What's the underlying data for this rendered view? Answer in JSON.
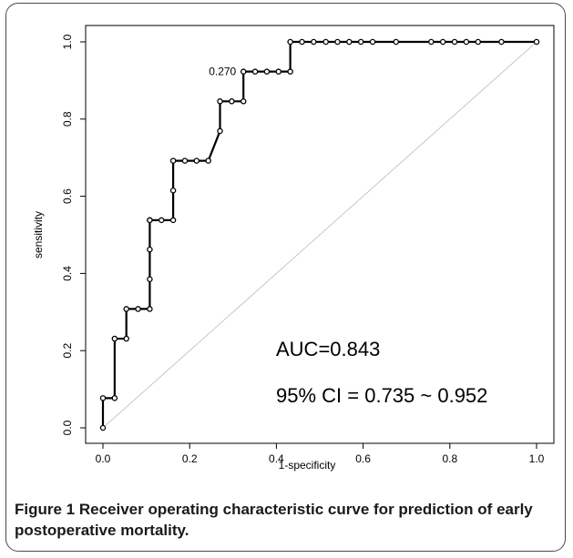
{
  "chart_data": {
    "type": "line",
    "xlabel": "1-specificity",
    "ylabel": "sensitivity",
    "xlim": [
      0.0,
      1.0
    ],
    "ylim": [
      0.0,
      1.0
    ],
    "x_ticks": [
      "0.0",
      "0.2",
      "0.4",
      "0.6",
      "0.8",
      "1.0"
    ],
    "y_ticks": [
      "0.0",
      "0.2",
      "0.4",
      "0.6",
      "0.8",
      "1.0"
    ],
    "grid": false,
    "reference_line": [
      [
        0,
        0
      ],
      [
        1,
        1
      ]
    ],
    "series": [
      {
        "x": [
          0.0,
          0.0,
          0.027,
          0.027,
          0.054,
          0.054,
          0.081,
          0.108,
          0.108,
          0.108,
          0.108,
          0.108,
          0.135,
          0.162,
          0.162,
          0.162,
          0.189,
          0.216,
          0.243,
          0.27,
          0.27,
          0.297,
          0.324,
          0.324,
          0.351,
          0.378,
          0.405,
          0.432,
          0.432,
          0.459,
          0.486,
          0.514,
          0.541,
          0.568,
          0.595,
          0.622,
          0.676,
          0.757,
          0.784,
          0.811,
          0.838,
          0.865,
          0.919,
          1.0
        ],
        "y": [
          0.0,
          0.077,
          0.077,
          0.231,
          0.231,
          0.308,
          0.308,
          0.308,
          0.385,
          0.462,
          0.538,
          0.538,
          0.538,
          0.538,
          0.615,
          0.692,
          0.692,
          0.692,
          0.692,
          0.769,
          0.846,
          0.846,
          0.846,
          0.923,
          0.923,
          0.923,
          0.923,
          0.923,
          1.0,
          1.0,
          1.0,
          1.0,
          1.0,
          1.0,
          1.0,
          1.0,
          1.0,
          1.0,
          1.0,
          1.0,
          1.0,
          1.0,
          1.0,
          1.0
        ]
      }
    ],
    "annotations": {
      "point_label": "0.270",
      "point_label_at": [
        0.324,
        0.923
      ],
      "auc": "AUC=0.843",
      "ci": "95% CI = 0.735 ~ 0.952"
    }
  },
  "caption": {
    "label": "Figure 1",
    "text": "Receiver operating characteristic curve for prediction of early postoperative mortality."
  }
}
